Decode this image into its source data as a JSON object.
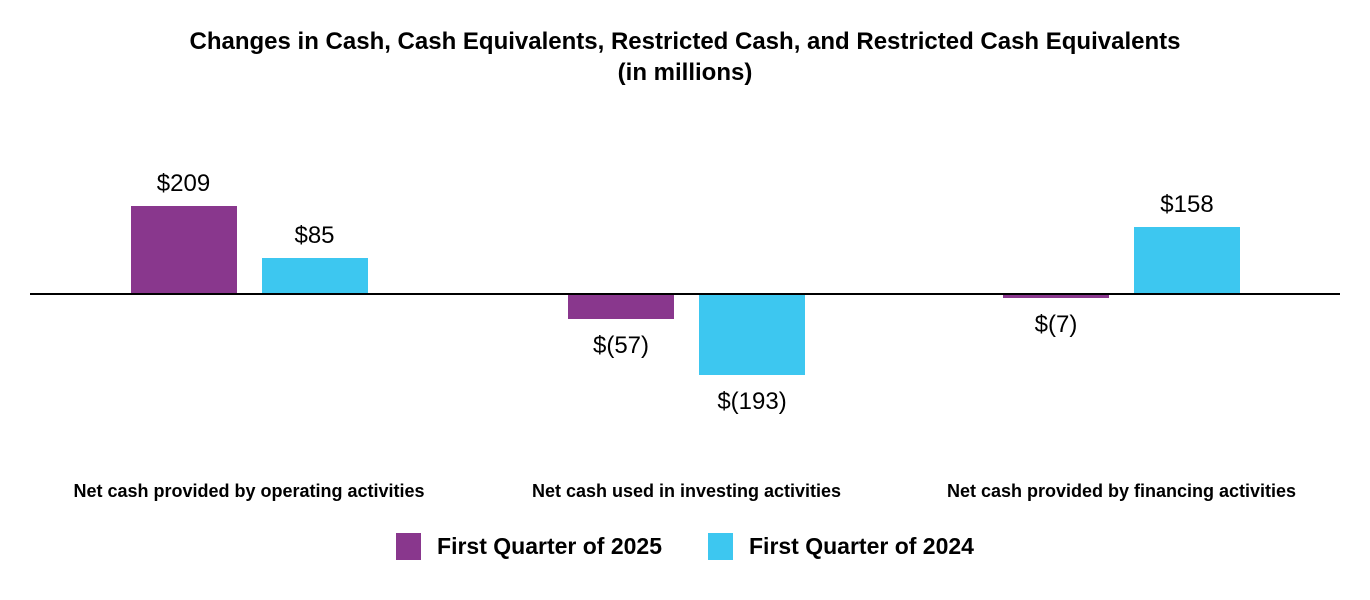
{
  "title": {
    "line1": "Changes in Cash, Cash Equivalents, Restricted Cash, and Restricted Cash Equivalents",
    "line2": "(in millions)"
  },
  "colors": {
    "series_2025": "#89378D",
    "series_2024": "#3DC7F0",
    "axis_line": "#000000",
    "text": "#000000",
    "background": "#FFFFFF"
  },
  "chart_data": {
    "type": "bar",
    "title": "Changes in Cash, Cash Equivalents, Restricted Cash, and Restricted Cash Equivalents (in millions)",
    "categories": [
      "Net cash provided by operating activities",
      "Net cash used in investing activities",
      "Net cash provided by financing activities"
    ],
    "series": [
      {
        "name": "First Quarter of 2025",
        "color": "#89378D",
        "values": [
          209,
          -57,
          -7
        ],
        "labels": [
          "$209",
          "$(57)",
          "$(7)"
        ]
      },
      {
        "name": "First Quarter of 2024",
        "color": "#3DC7F0",
        "values": [
          85,
          -193,
          158
        ],
        "labels": [
          "$85",
          "$(193)",
          "$158"
        ]
      }
    ],
    "ylim": [
      -230,
      230
    ],
    "grid": false,
    "axis": "zero-baseline horizontal axis only, no ticks, no y-axis",
    "value_labels": "shown above positive bars and below negative bars, $ with parentheses for negatives",
    "legend_position": "bottom-center"
  }
}
